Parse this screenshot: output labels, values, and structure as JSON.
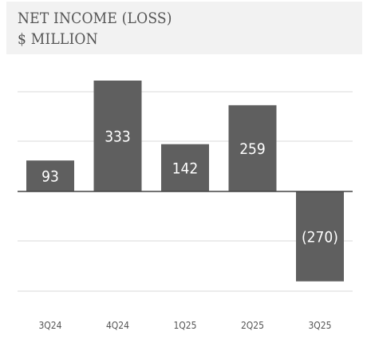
{
  "header": {
    "title_line1": "NET INCOME (LOSS)",
    "title_line2": "$ MILLION"
  },
  "colors": {
    "bar": "#5f5f5f",
    "grid": "#d9d9d9",
    "zero_line": "#444444",
    "header_bg": "#f2f2f2"
  },
  "chart_data": {
    "type": "bar",
    "title": "NET INCOME (LOSS)",
    "subtitle": "$ MILLION",
    "categories": [
      "3Q24",
      "4Q24",
      "1Q25",
      "2Q25",
      "3Q25"
    ],
    "values": [
      93,
      333,
      142,
      259,
      -270
    ],
    "data_labels": [
      "93",
      "333",
      "142",
      "259",
      "(270)"
    ],
    "ylim": [
      -270,
      333
    ],
    "grid": true,
    "legend": "none"
  }
}
